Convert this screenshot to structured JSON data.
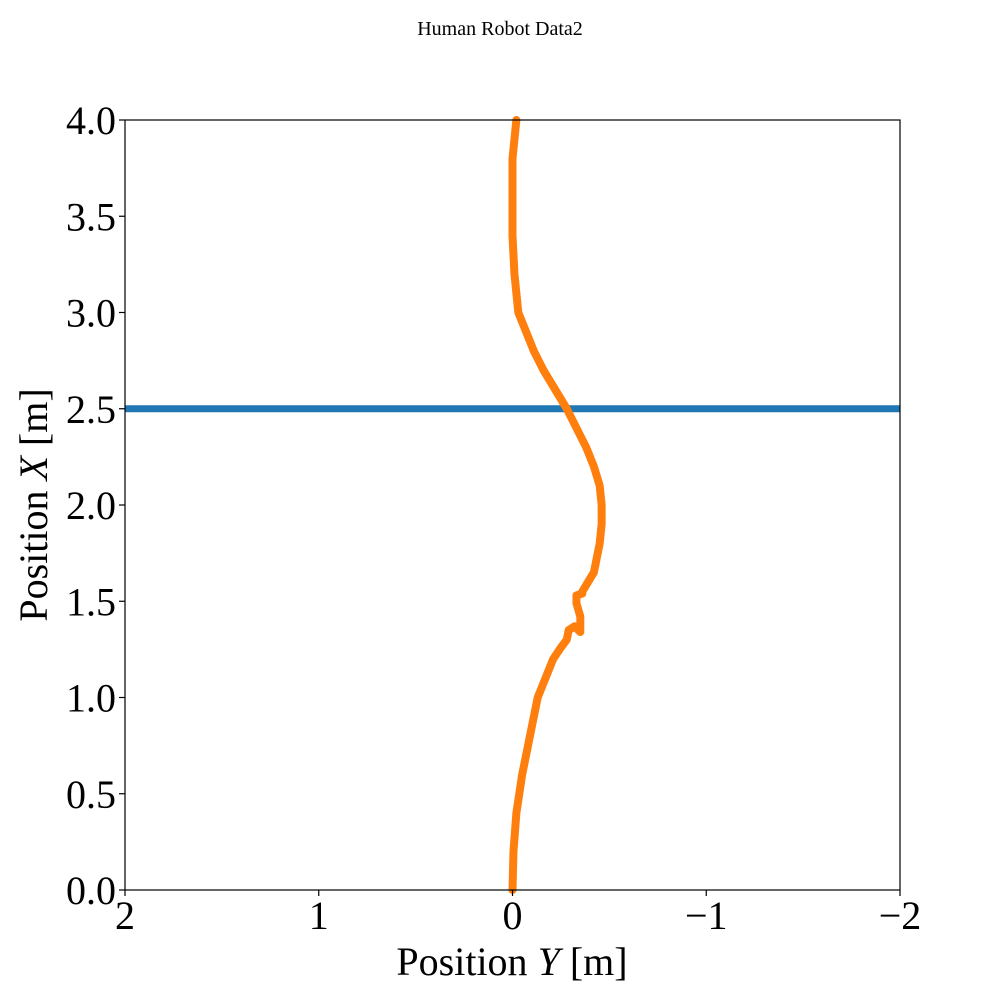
{
  "title": "Human Robot Data2",
  "chart_data": {
    "type": "line",
    "title": "Human Robot Data2",
    "xlabel": {
      "prefix": "Position ",
      "var": "Y",
      "suffix": " [m]"
    },
    "ylabel": {
      "prefix": "Position ",
      "var": "X",
      "suffix": " [m]"
    },
    "xlim": [
      2,
      -2
    ],
    "ylim": [
      0,
      4
    ],
    "x_inverted": true,
    "grid": false,
    "x_ticks": [
      2,
      1,
      0,
      -1,
      -2
    ],
    "x_tick_labels": [
      "2",
      "1",
      "0",
      "−1",
      "−2"
    ],
    "y_ticks": [
      0.0,
      0.5,
      1.0,
      1.5,
      2.0,
      2.5,
      3.0,
      3.5,
      4.0
    ],
    "y_tick_labels": [
      "0.0",
      "0.5",
      "1.0",
      "1.5",
      "2.0",
      "2.5",
      "3.0",
      "3.5",
      "4.0"
    ],
    "series": [
      {
        "color": "#1f77b4",
        "x": [
          2,
          -2
        ],
        "y": [
          2.5,
          2.5
        ]
      },
      {
        "color": "#ff7f0e",
        "x": [
          0.0,
          -0.005,
          -0.02,
          -0.05,
          -0.09,
          -0.13,
          -0.17,
          -0.21,
          -0.25,
          -0.28,
          -0.29,
          -0.32,
          -0.34,
          -0.35,
          -0.35,
          -0.33,
          -0.33,
          -0.36,
          -0.36,
          -0.39,
          -0.42,
          -0.43,
          -0.45,
          -0.46,
          -0.46,
          -0.45,
          -0.42,
          -0.38,
          -0.33,
          -0.28,
          -0.22,
          -0.16,
          -0.11,
          -0.07,
          -0.03,
          -0.01,
          0.0,
          0.0,
          0.0,
          -0.01,
          -0.02
        ],
        "y": [
          0.0,
          0.2,
          0.4,
          0.6,
          0.8,
          1.0,
          1.1,
          1.2,
          1.26,
          1.3,
          1.35,
          1.37,
          1.35,
          1.34,
          1.42,
          1.49,
          1.53,
          1.54,
          1.55,
          1.6,
          1.65,
          1.7,
          1.8,
          1.9,
          2.0,
          2.1,
          2.2,
          2.3,
          2.4,
          2.5,
          2.6,
          2.7,
          2.8,
          2.9,
          3.0,
          3.2,
          3.4,
          3.6,
          3.8,
          3.9,
          4.0
        ]
      }
    ]
  }
}
